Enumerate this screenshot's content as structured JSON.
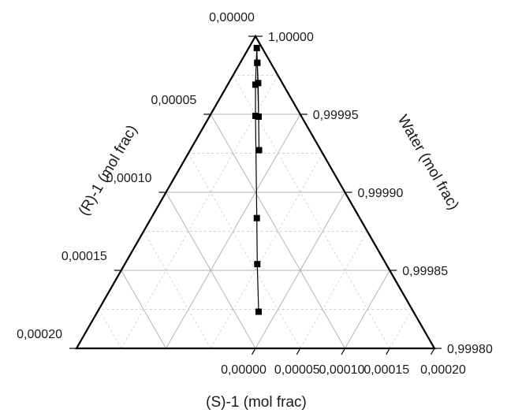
{
  "chart_data": {
    "type": "ternary",
    "axes": {
      "bottom": {
        "label": "(S)-1 (mol frac)",
        "range": [
          0,
          0.0002
        ],
        "ticks": [
          {
            "value": 0.0,
            "label": "0,00000"
          },
          {
            "value": 5e-05,
            "label": "0,00005"
          },
          {
            "value": 0.0001,
            "label": "0,00010"
          },
          {
            "value": 0.00015,
            "label": "0,00015"
          },
          {
            "value": 0.0002,
            "label": "0,00020"
          }
        ]
      },
      "left": {
        "label": "(R)-1 (mol frac)",
        "range": [
          0,
          0.0002
        ],
        "ticks": [
          {
            "value": 0.0,
            "label": "0,00000"
          },
          {
            "value": 5e-05,
            "label": "0,00005"
          },
          {
            "value": 0.0001,
            "label": "0,00010"
          },
          {
            "value": 0.00015,
            "label": "0,00015"
          },
          {
            "value": 0.0002,
            "label": "0,00020"
          }
        ]
      },
      "right": {
        "label": "Water (mol frac)",
        "range": [
          0.9998,
          1.0
        ],
        "ticks": [
          {
            "value": 1.0,
            "label": "1,00000"
          },
          {
            "value": 0.99995,
            "label": "0,99995"
          },
          {
            "value": 0.9999,
            "label": "0,99990"
          },
          {
            "value": 0.99985,
            "label": "0,99985"
          },
          {
            "value": 0.9998,
            "label": "0,99980"
          }
        ]
      }
    },
    "grid": true,
    "minor_grid": true,
    "series": [
      {
        "marker": "square",
        "color": "#000000",
        "points": [
          {
            "s": 9e-05,
            "r": 8.65e-05,
            "water": 0.9998235
          },
          {
            "s": 7.4e-05,
            "r": 7.2e-05,
            "water": 0.999854
          },
          {
            "s": 5.9e-05,
            "r": 5.75e-05,
            "water": 0.9998835
          },
          {
            "s": 2.55e-05,
            "r": 2.55e-05,
            "water": 0.999949
          },
          {
            "s": 1.55e-05,
            "r": 1.55e-05,
            "water": 0.999969
          },
          {
            "s": 4.5e-06,
            "r": 3e-06,
            "water": 0.9999925
          },
          {
            "s": 9.5e-06,
            "r": 7.5e-06,
            "water": 0.999983
          },
          {
            "s": 1.65e-05,
            "r": 1.35e-05,
            "water": 0.99997
          },
          {
            "s": 3.85e-05,
            "r": 3.45e-05,
            "water": 0.999927
          },
          {
            "s": 2.75e-05,
            "r": 2.4e-05,
            "water": 0.9999485
          },
          {
            "s": 9.5e-06,
            "r": 7.5e-06,
            "water": 0.999983
          }
        ]
      }
    ]
  }
}
